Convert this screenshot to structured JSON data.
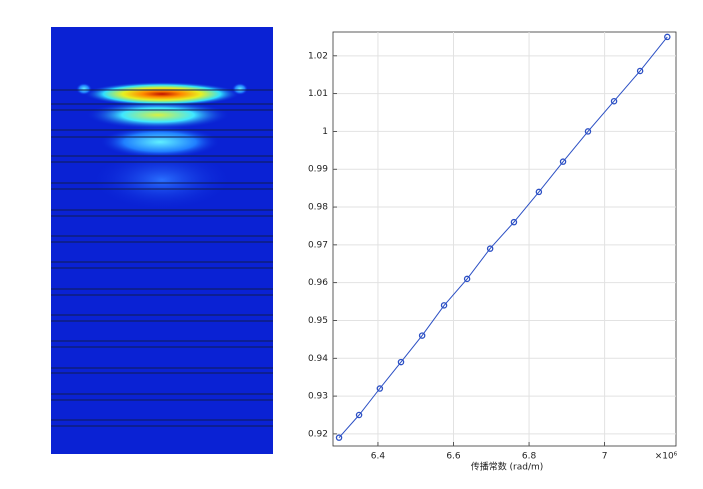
{
  "chart_data": {
    "type": "line",
    "x_label": "传播常数 (rad/m)",
    "x_multiplier": "×10⁶",
    "x": [
      6.297,
      6.35,
      6.405,
      6.461,
      6.517,
      6.575,
      6.636,
      6.697,
      6.76,
      6.826,
      6.89,
      6.956,
      7.025,
      7.094,
      7.166
    ],
    "values": [
      0.919,
      0.925,
      0.932,
      0.939,
      0.946,
      0.954,
      0.961,
      0.969,
      0.976,
      0.984,
      0.992,
      1.0,
      1.008,
      1.016,
      1.025
    ],
    "color": "#2b4fc4",
    "xlim": [
      6.281,
      7.189
    ],
    "ylim": [
      0.9168,
      1.0263
    ],
    "xticks": [
      6.4,
      6.6,
      6.8,
      7
    ],
    "yticks": [
      0.92,
      0.93,
      0.94,
      0.95,
      0.96,
      0.97,
      0.98,
      0.99,
      1,
      1.01,
      1.02
    ],
    "grid": true
  }
}
